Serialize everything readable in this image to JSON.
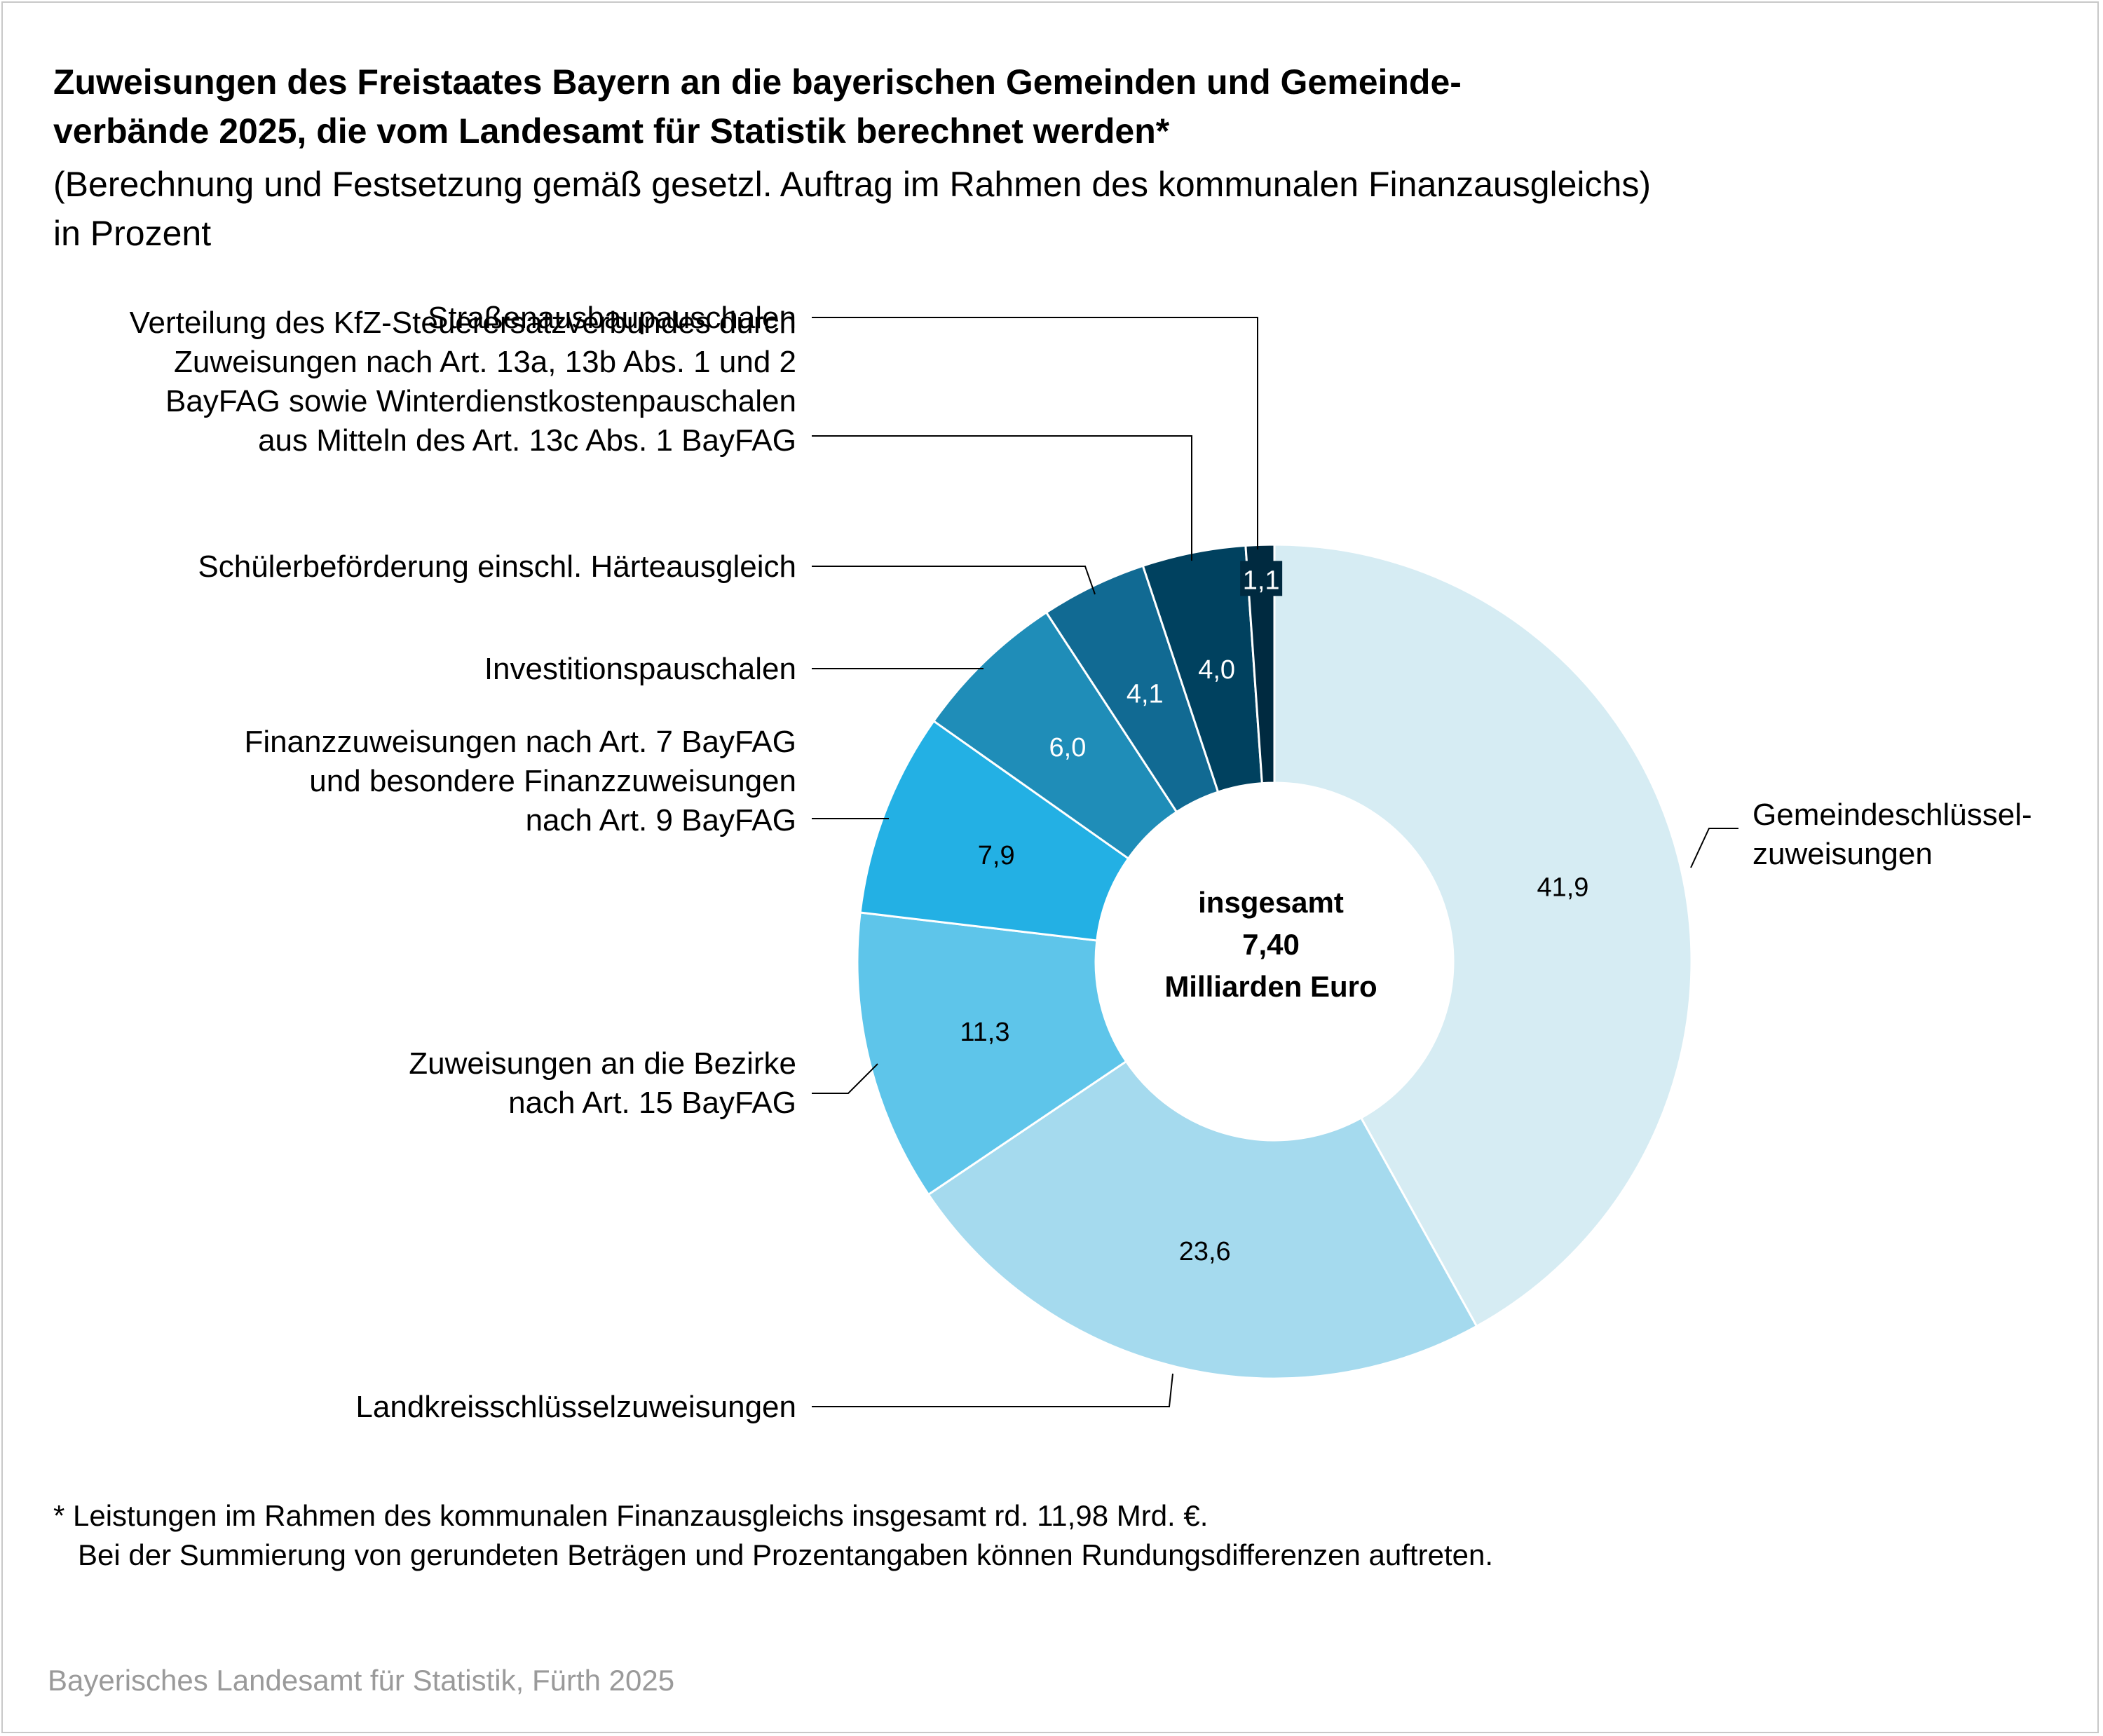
{
  "title_lines": [
    "Zuweisungen des Freistaates Bayern an die bayerischen Gemeinden und Gemeinde-",
    "verbände 2025, die vom Landesamt für Statistik berechnet werden*"
  ],
  "subtitle_lines": [
    "(Berechnung und Festsetzung gemäß gesetzl. Auftrag im Rahmen des kommunalen Finanzausgleichs)",
    "in Prozent"
  ],
  "center_lines": [
    "insgesamt",
    "7,40",
    "Milliarden Euro"
  ],
  "footnote_lines": [
    "* Leistungen im Rahmen des kommunalen Finanzausgleichs insgesamt rd. 11,98 Mrd. €.",
    "   Bei der Summierung von gerundeten Beträgen und Prozentangaben können Rundungsdifferenzen auftreten."
  ],
  "source": "Bayerisches Landesamt für Statistik, Fürth 2025",
  "chart_data": {
    "type": "pie",
    "donut": true,
    "start": "12 o'clock, clockwise",
    "values": [
      41.9,
      23.6,
      11.3,
      7.9,
      6.0,
      4.1,
      4.0,
      1.1
    ],
    "value_labels": [
      "41,9",
      "23,6",
      "11,3",
      "7,9",
      "6,0",
      "4,1",
      "4,0",
      "1,1"
    ],
    "category_lines": [
      [
        "Gemeindeschlüssel-",
        "zuweisungen"
      ],
      [
        "Landkreisschlüsselzuweisungen"
      ],
      [
        "Zuweisungen an die Bezirke",
        "nach Art. 15 BayFAG"
      ],
      [
        "Finanzzuweisungen nach Art. 7 BayFAG",
        "und besondere Finanzzuweisungen",
        "nach Art. 9 BayFAG"
      ],
      [
        "Investitionspauschalen"
      ],
      [
        "Schülerbeförderung einschl. Härteausgleich"
      ],
      [
        "Verteilung des KfZ-Steuerersatzverbundes durch",
        "Zuweisungen nach Art. 13a, 13b Abs. 1 und 2",
        "BayFAG sowie Winterdienstkostenpauschalen",
        "aus Mitteln des Art. 13c Abs. 1 BayFAG"
      ],
      [
        "Straßenausbaupauschalen"
      ]
    ],
    "colors": [
      "#d6ecf3",
      "#a5daee",
      "#5ec5ea",
      "#23b0e4",
      "#1f8db8",
      "#116a93",
      "#00415f",
      "#002a40"
    ],
    "value_label_colors": [
      "#000000",
      "#000000",
      "#000000",
      "#000000",
      "#ffffff",
      "#ffffff",
      "#ffffff",
      "#ffffff"
    ]
  }
}
